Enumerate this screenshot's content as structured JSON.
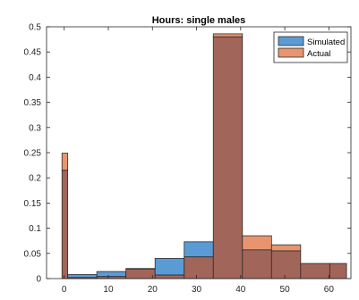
{
  "chart_data": {
    "type": "bar",
    "title": "Hours: single males",
    "xlabel": "",
    "ylabel": "",
    "xlim": [
      -4,
      65
    ],
    "ylim": [
      0,
      0.5
    ],
    "x_ticks": [
      0,
      10,
      20,
      30,
      40,
      50,
      60
    ],
    "y_ticks": [
      0,
      0.05,
      0.1,
      0.15,
      0.2,
      0.25,
      0.3,
      0.35,
      0.4,
      0.45,
      0.5
    ],
    "grid": false,
    "legend_position": "top-right",
    "bins": [
      {
        "x0": -0.5,
        "x1": 0.8
      },
      {
        "x0": 0.8,
        "x1": 7.4
      },
      {
        "x0": 7.4,
        "x1": 14.0
      },
      {
        "x0": 14.0,
        "x1": 20.6
      },
      {
        "x0": 20.6,
        "x1": 27.2
      },
      {
        "x0": 27.2,
        "x1": 33.8
      },
      {
        "x0": 33.8,
        "x1": 40.4
      },
      {
        "x0": 40.4,
        "x1": 47.0
      },
      {
        "x0": 47.0,
        "x1": 53.6
      },
      {
        "x0": 53.6,
        "x1": 60.2
      },
      {
        "x0": 60.2,
        "x1": 64.0
      }
    ],
    "series": [
      {
        "name": "Simulated",
        "color": "#5b9bd5",
        "values": [
          0.215,
          0.008,
          0.014,
          0.019,
          0.04,
          0.073,
          0.48,
          0.057,
          0.055,
          0.03,
          0.03
        ]
      },
      {
        "name": "Actual",
        "color": "#e8956f",
        "values": [
          0.249,
          0.002,
          0.004,
          0.02,
          0.007,
          0.043,
          0.486,
          0.085,
          0.067,
          0.03,
          0.03
        ]
      }
    ],
    "overlap_color": "#a26559"
  }
}
